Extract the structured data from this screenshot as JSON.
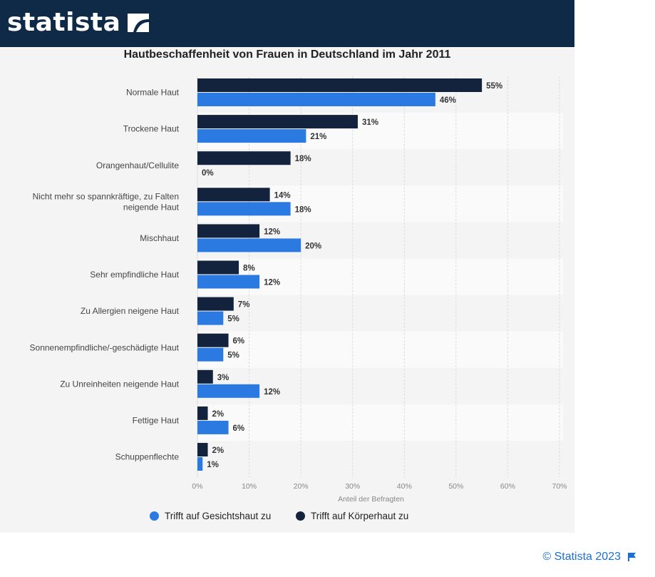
{
  "brand": {
    "name": "statista"
  },
  "footer": {
    "copyright": "© Statista 2023"
  },
  "colors": {
    "header": "#0e2a47",
    "face": "#2a7ae2",
    "body": "#14233d"
  },
  "chart_data": {
    "type": "bar",
    "orientation": "horizontal",
    "title": "Hautbeschaffenheit von Frauen in Deutschland im Jahr 2011",
    "xlabel": "Anteil der Befragten",
    "xlim": [
      0,
      70
    ],
    "xticks": [
      "0%",
      "10%",
      "20%",
      "30%",
      "40%",
      "50%",
      "60%",
      "70%"
    ],
    "categories": [
      [
        "Normale Haut"
      ],
      [
        "Trockene Haut"
      ],
      [
        "Orangenhaut/Cellulite"
      ],
      [
        "Nicht mehr so spannkräftige, zu Falten",
        "neigende Haut"
      ],
      [
        "Mischhaut"
      ],
      [
        "Sehr empfindliche Haut"
      ],
      [
        "Zu Allergien neigene Haut"
      ],
      [
        "Sonnenempfindliche/-geschädigte Haut"
      ],
      [
        "Zu Unreinheiten neigende Haut"
      ],
      [
        "Fettige Haut"
      ],
      [
        "Schuppenflechte"
      ]
    ],
    "series": [
      {
        "name": "Trifft auf Körperhaut zu",
        "color": "#14233d",
        "values": [
          55,
          31,
          18,
          14,
          12,
          8,
          7,
          6,
          3,
          2,
          2
        ]
      },
      {
        "name": "Trifft auf Gesichtshaut zu",
        "color": "#2a7ae2",
        "values": [
          46,
          21,
          0,
          18,
          20,
          12,
          5,
          5,
          12,
          6,
          1
        ]
      }
    ],
    "legend": [
      "Trifft auf Gesichtshaut zu",
      "Trifft auf Körperhaut zu"
    ],
    "legend_position": "bottom",
    "grid": true
  }
}
